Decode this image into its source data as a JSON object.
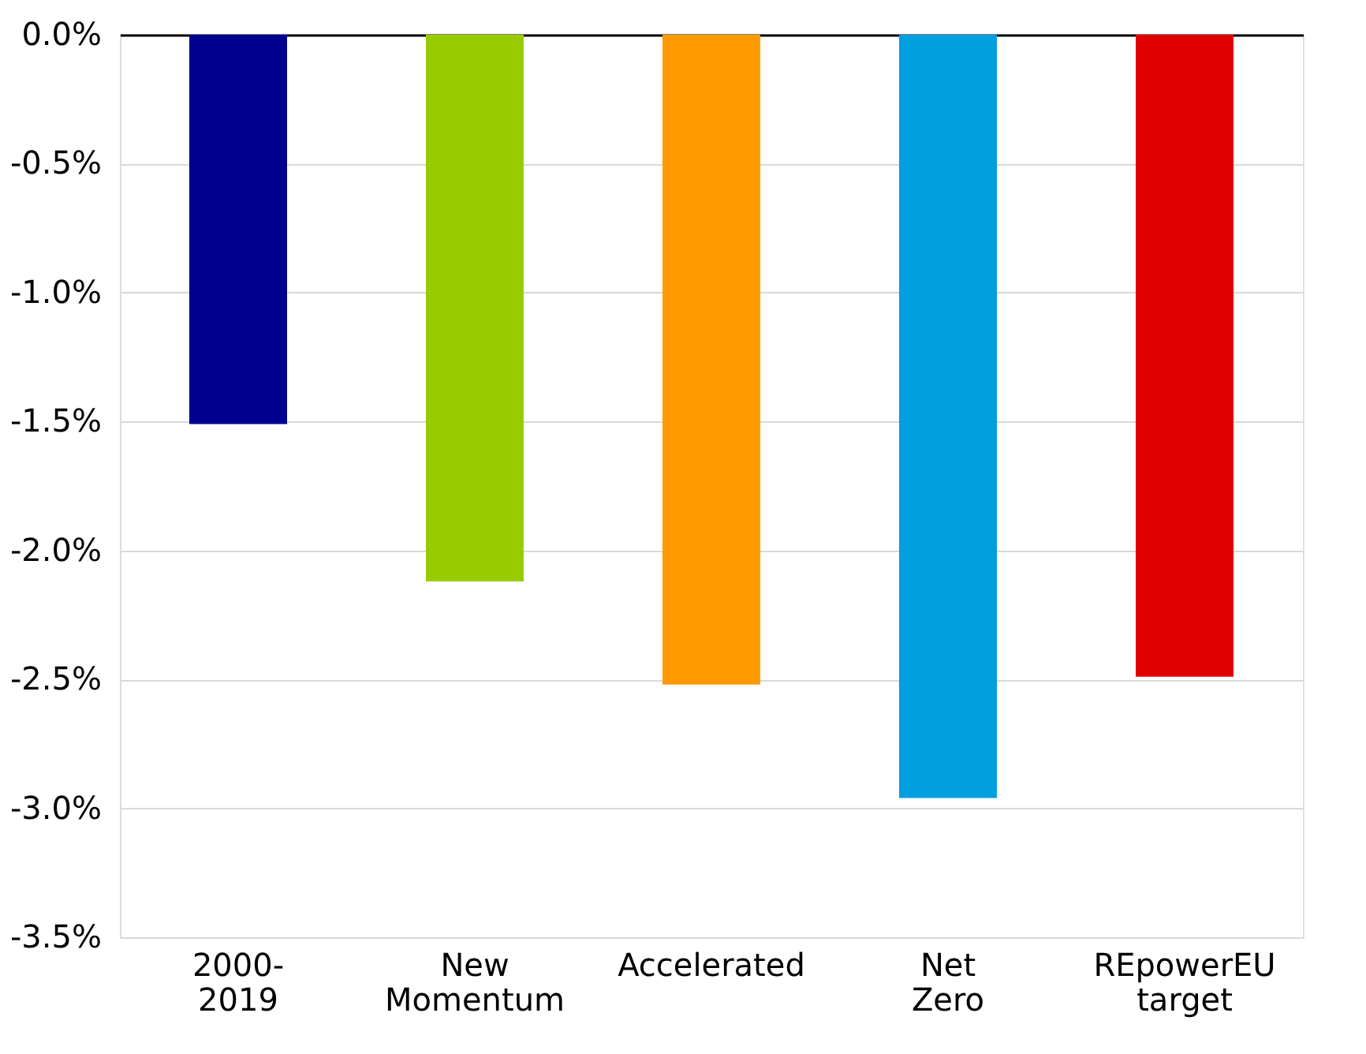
{
  "chart_data": {
    "type": "bar",
    "categories": [
      "2000-2019",
      "New Momentum",
      "Accelerated",
      "Net Zero",
      "REpowerEU target"
    ],
    "values": [
      -1.51,
      -2.12,
      -2.52,
      -2.96,
      -2.49
    ],
    "colors": [
      "#000090",
      "#99cc00",
      "#ff9900",
      "#009fe0",
      "#e00000"
    ],
    "ylim": [
      -3.5,
      0
    ],
    "yticks": [
      {
        "value": 0,
        "label": "0.0%"
      },
      {
        "value": -0.5,
        "label": "-0.5%"
      },
      {
        "value": -1,
        "label": "-1.0%"
      },
      {
        "value": -1.5,
        "label": "-1.5%"
      },
      {
        "value": -2,
        "label": "-2.0%"
      },
      {
        "value": -2.5,
        "label": "-2.5%"
      },
      {
        "value": -3,
        "label": "-3.0%"
      },
      {
        "value": -3.5,
        "label": "-3.5%"
      }
    ],
    "grid": "y"
  }
}
